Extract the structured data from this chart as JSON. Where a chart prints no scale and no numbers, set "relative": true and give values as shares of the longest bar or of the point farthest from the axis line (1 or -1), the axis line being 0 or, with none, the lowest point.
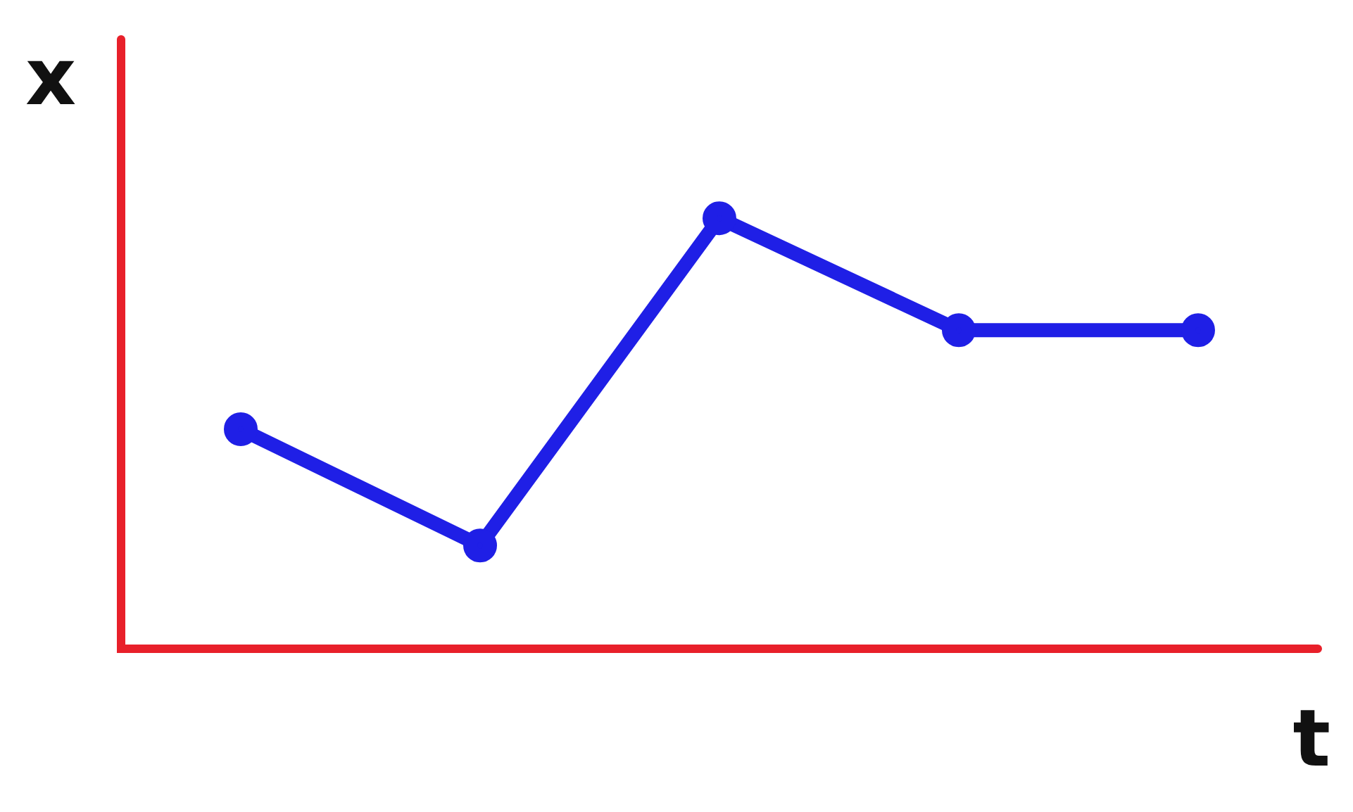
{
  "chart_data": {
    "type": "line",
    "xlabel": "t",
    "ylabel": "x",
    "relative": true,
    "categories": [
      null,
      null,
      null,
      null,
      null
    ],
    "series": [
      {
        "color": "#1f1fe6",
        "values": [
          0.51,
          0.24,
          1,
          0.74,
          0.74
        ]
      }
    ],
    "marker": "circle",
    "grid": false,
    "legend": false
  }
}
